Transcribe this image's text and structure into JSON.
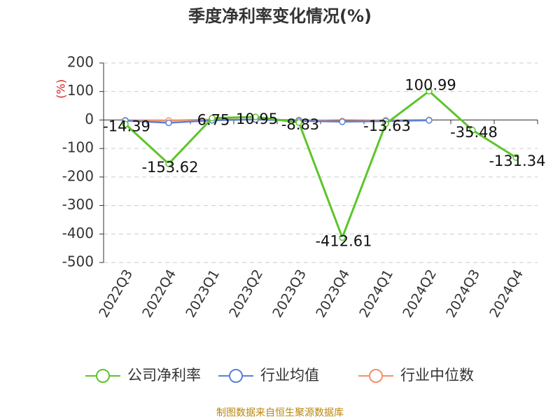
{
  "chart_data": {
    "type": "line",
    "title": "季度净利率变化情况(%)",
    "y_label": "(%)",
    "categories": [
      "2022Q3",
      "2022Q4",
      "2023Q1",
      "2023Q2",
      "2023Q3",
      "2023Q4",
      "2024Q1",
      "2024Q2",
      "2024Q3",
      "2024Q4"
    ],
    "series": [
      {
        "name": "公司净利率",
        "color": "#5cc52a",
        "values": [
          -14.39,
          -153.62,
          6.75,
          10.95,
          -8.83,
          -412.61,
          -13.63,
          100.99,
          -35.48,
          -131.34
        ],
        "show_labels": true
      },
      {
        "name": "行业均值",
        "color": "#5b80d9",
        "values": [
          -2,
          -10,
          -1,
          2,
          -3,
          -6,
          -4,
          -1,
          null,
          null
        ]
      },
      {
        "name": "行业中位数",
        "color": "#f29169",
        "values": [
          -1,
          -2,
          2,
          1,
          0,
          -4,
          -1,
          0,
          null,
          null
        ]
      }
    ],
    "ylim": [
      -500,
      200
    ],
    "yticks": [
      -500,
      -400,
      -300,
      -200,
      -100,
      0,
      100,
      200
    ],
    "grid": true,
    "source": "制图数据来自恒生聚源数据库"
  }
}
